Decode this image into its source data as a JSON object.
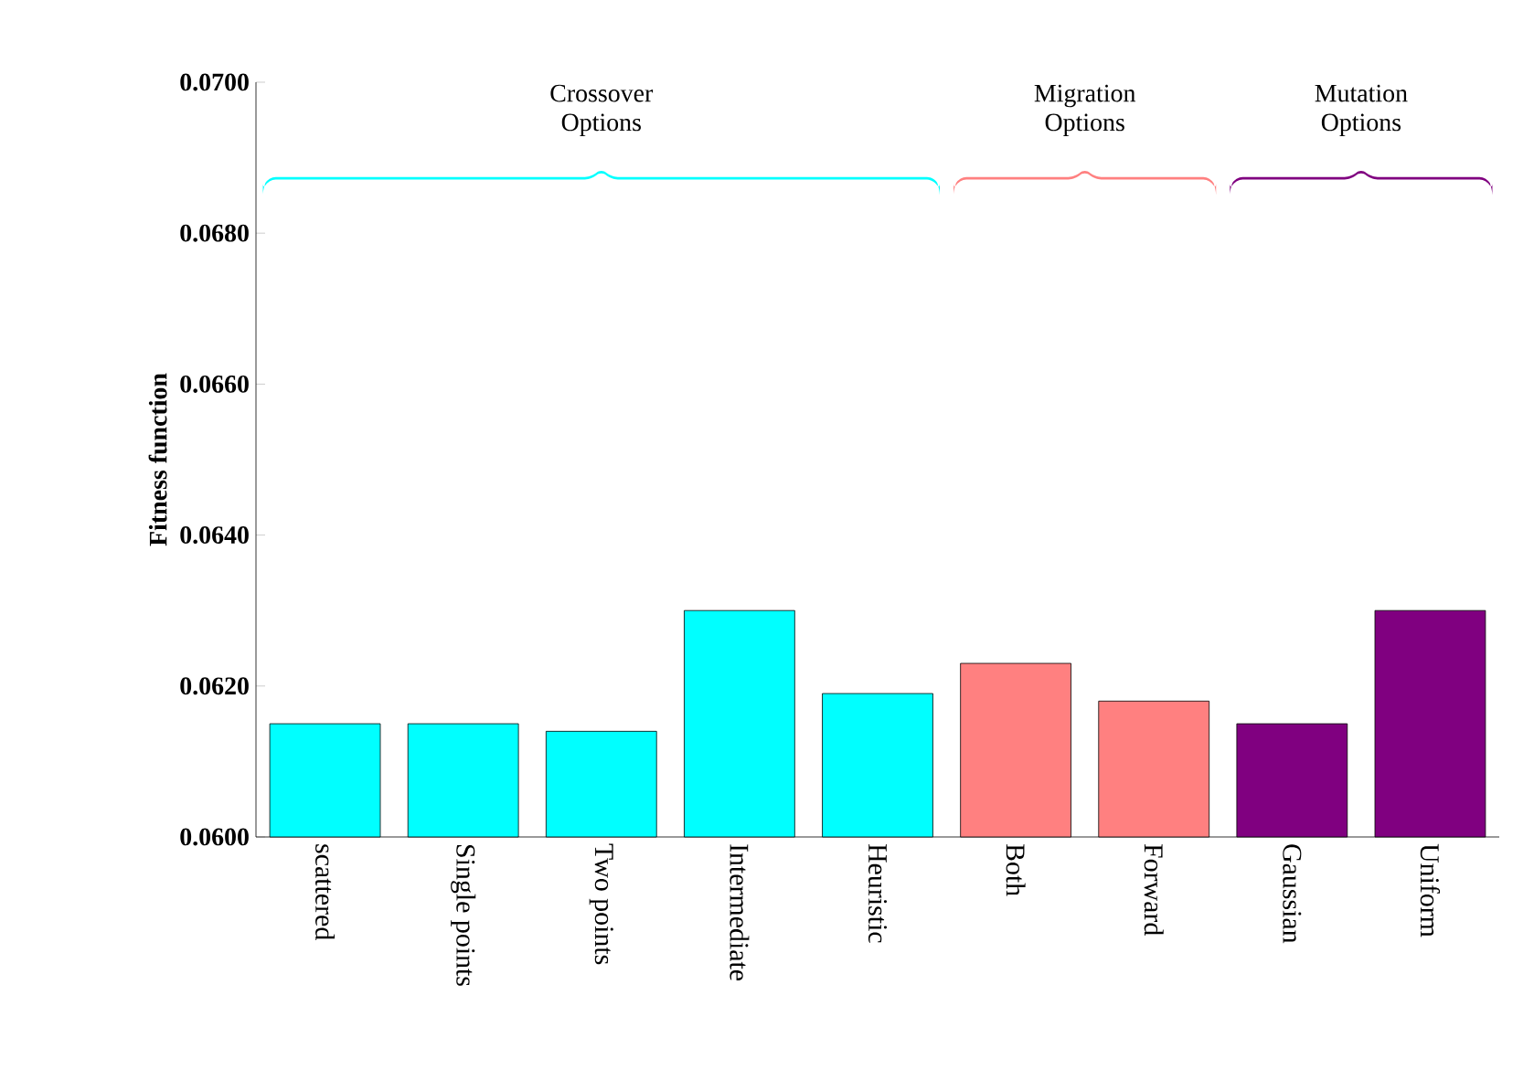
{
  "chart_data": {
    "type": "bar",
    "ylabel": "Fitness function",
    "categories": [
      "scattered",
      "Single points",
      "Two points",
      "Intermediate",
      "Heuristic",
      "Both",
      "Forward",
      "Gaussian",
      "Uniform"
    ],
    "values": [
      0.0615,
      0.0615,
      0.0614,
      0.063,
      0.0619,
      0.0623,
      0.0618,
      0.0615,
      0.063
    ],
    "colors": [
      "#00ffff",
      "#00ffff",
      "#00ffff",
      "#00ffff",
      "#00ffff",
      "#ff8080",
      "#ff8080",
      "#800080",
      "#800080"
    ],
    "ylim": [
      0.06,
      0.07
    ],
    "yticks": [
      {
        "value": 0.06,
        "label": "0.0600"
      },
      {
        "value": 0.062,
        "label": "0.0620"
      },
      {
        "value": 0.064,
        "label": "0.0640"
      },
      {
        "value": 0.066,
        "label": "0.0660"
      },
      {
        "value": 0.068,
        "label": "0.0680"
      },
      {
        "value": 0.07,
        "label": "0.0700"
      }
    ],
    "annotations": [
      "Crossover\nOptions",
      "Migration\nOptions",
      "Mutation\nOptions"
    ],
    "grid": false
  }
}
